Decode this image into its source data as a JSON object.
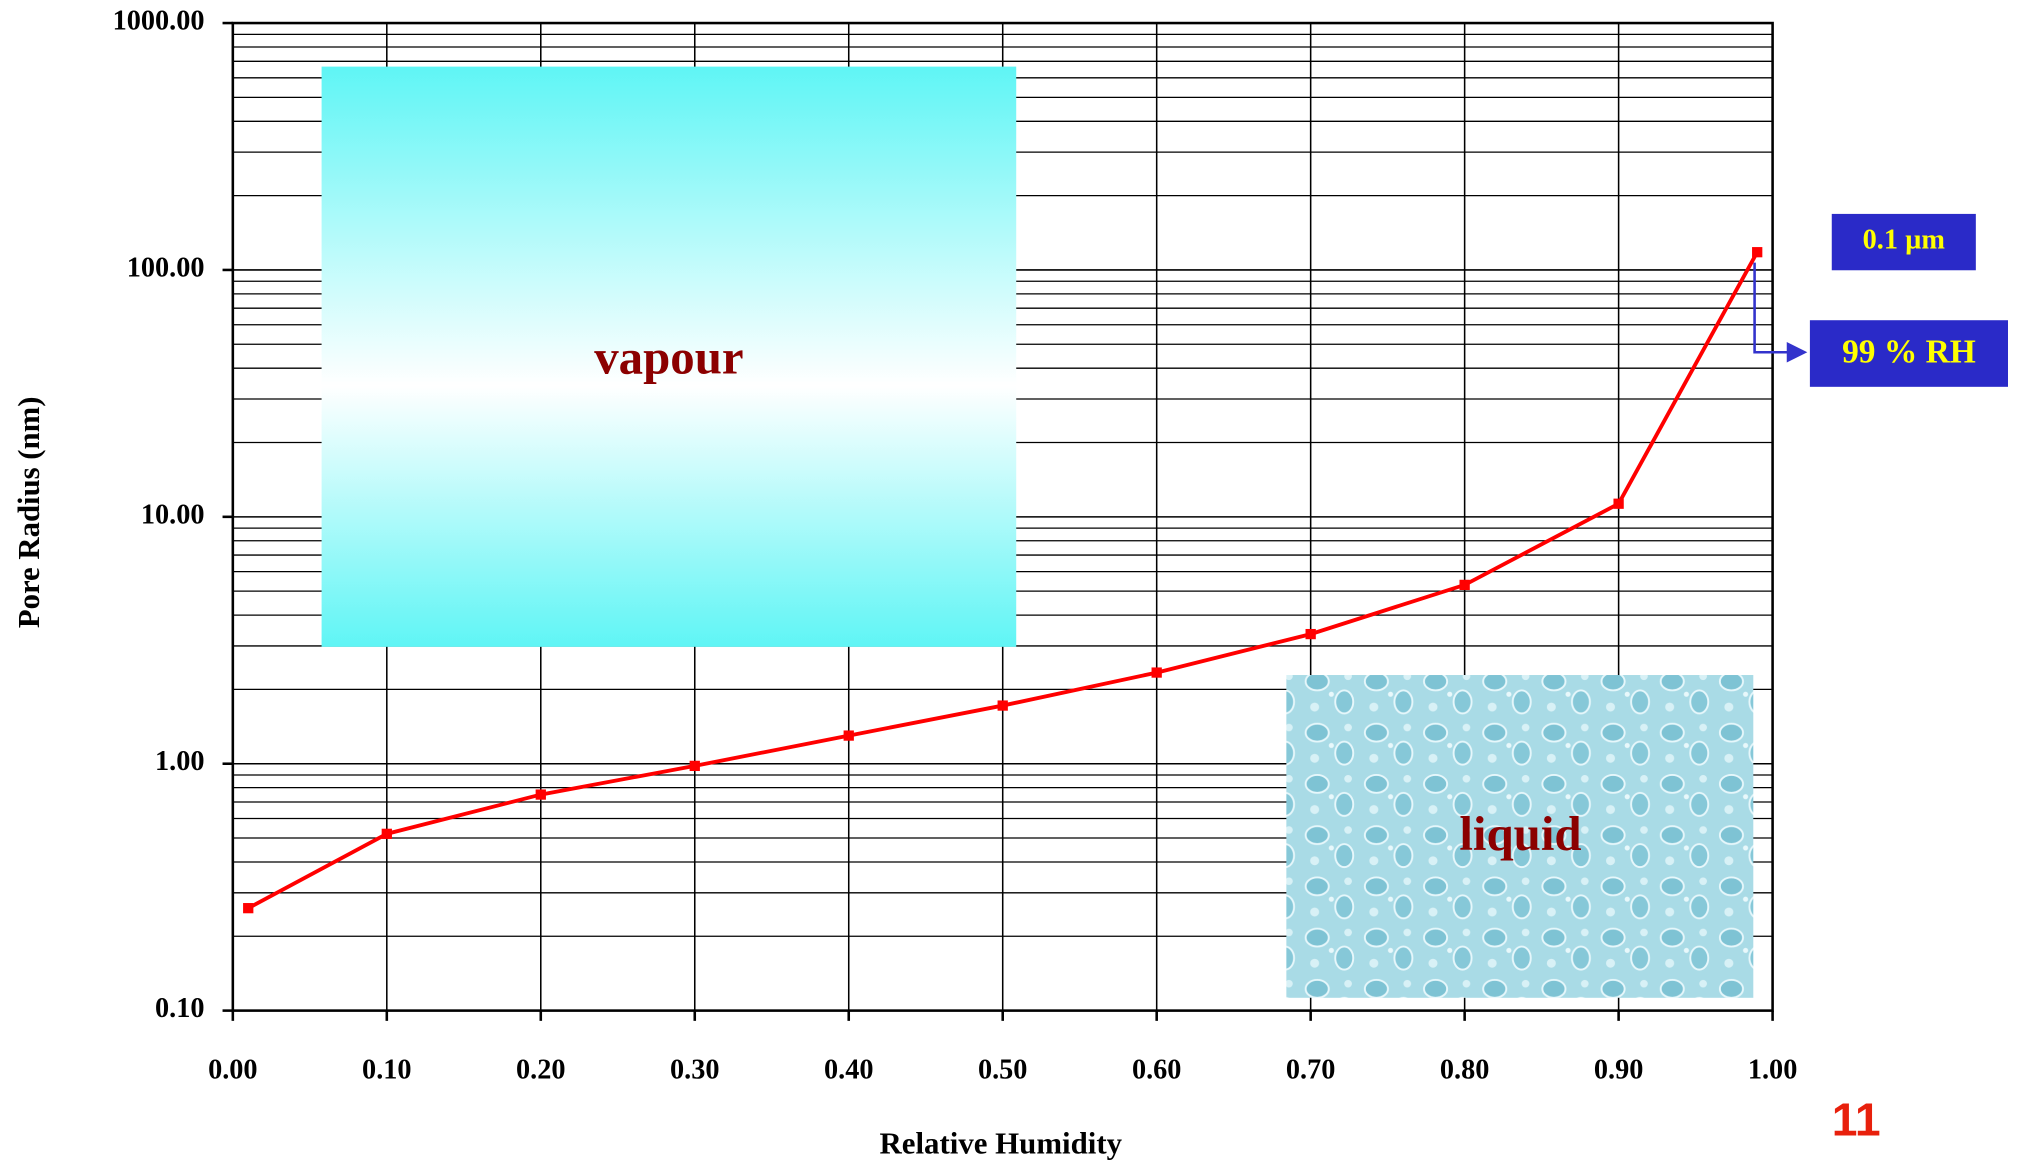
{
  "chart_data": {
    "type": "line",
    "x_label": "Relative Humidity",
    "y_label": "Pore Radius (nm)",
    "x": [
      0.01,
      0.1,
      0.2,
      0.3,
      0.4,
      0.5,
      0.6,
      0.7,
      0.8,
      0.9,
      0.99
    ],
    "series": [
      {
        "color": "#ff0000",
        "values": [
          0.26,
          0.52,
          0.75,
          0.98,
          1.3,
          1.72,
          2.34,
          3.35,
          5.3,
          11.3,
          118
        ]
      }
    ],
    "xlim": [
      0,
      1
    ],
    "xticks": [
      {
        "value": 0,
        "label": "0.00"
      },
      {
        "value": 0.1,
        "label": "0.10"
      },
      {
        "value": 0.2,
        "label": "0.20"
      },
      {
        "value": 0.3,
        "label": "0.30"
      },
      {
        "value": 0.4,
        "label": "0.40"
      },
      {
        "value": 0.5,
        "label": "0.50"
      },
      {
        "value": 0.6,
        "label": "0.60"
      },
      {
        "value": 0.7,
        "label": "0.70"
      },
      {
        "value": 0.8,
        "label": "0.80"
      },
      {
        "value": 0.9,
        "label": "0.90"
      },
      {
        "value": 1,
        "label": "1.00"
      }
    ],
    "ylim": [
      0.1,
      1000
    ],
    "yticks": [
      {
        "value": 0.1,
        "label": "0.10"
      },
      {
        "value": 1,
        "label": "1.00"
      },
      {
        "value": 10,
        "label": "10.00"
      },
      {
        "value": 100,
        "label": "100.00"
      },
      {
        "value": 1000,
        "label": "1000.00"
      }
    ],
    "y_log": true,
    "grid": true,
    "annotations": {
      "vapour": "vapour",
      "liquid": "liquid",
      "size": "0.1 µm",
      "rh": "99 % RH"
    }
  },
  "page_number": "11"
}
